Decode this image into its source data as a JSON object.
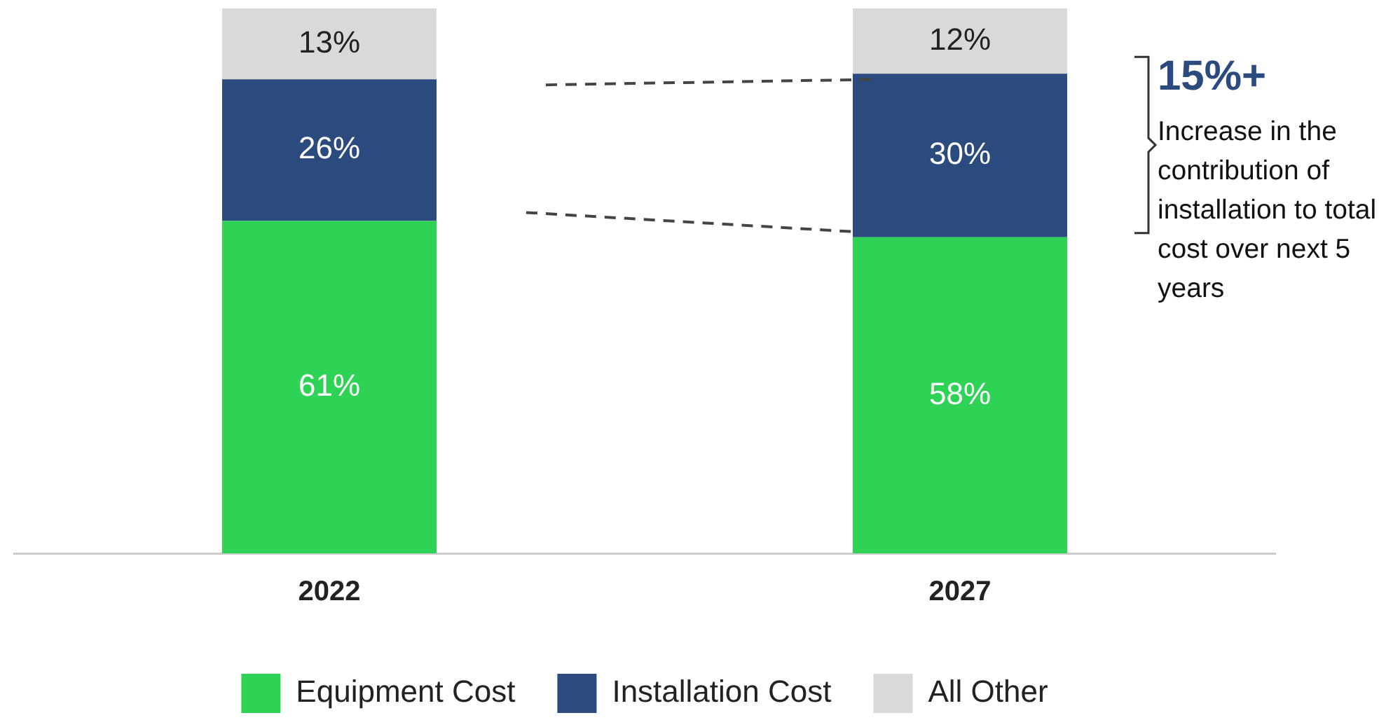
{
  "chart_data": {
    "type": "bar",
    "stacked": true,
    "categories": [
      "2022",
      "2027"
    ],
    "series": [
      {
        "name": "Equipment Cost",
        "color": "#2ed356",
        "values": [
          61,
          58
        ],
        "value_labels": [
          "61%",
          "58%"
        ]
      },
      {
        "name": "Installation Cost",
        "color": "#2b4a7e",
        "values": [
          26,
          30
        ],
        "value_labels": [
          "26%",
          "30%"
        ]
      },
      {
        "name": "All Other",
        "color": "#d9d9d9",
        "values": [
          13,
          12
        ],
        "value_labels": [
          "13%",
          "12%"
        ]
      }
    ],
    "ylim": [
      0,
      100
    ],
    "tick_labels": "x",
    "grid": false,
    "legend": "bottom",
    "annotations": [
      "15%+",
      "Increase in the contribution of installation to total cost over next 5 years"
    ]
  }
}
